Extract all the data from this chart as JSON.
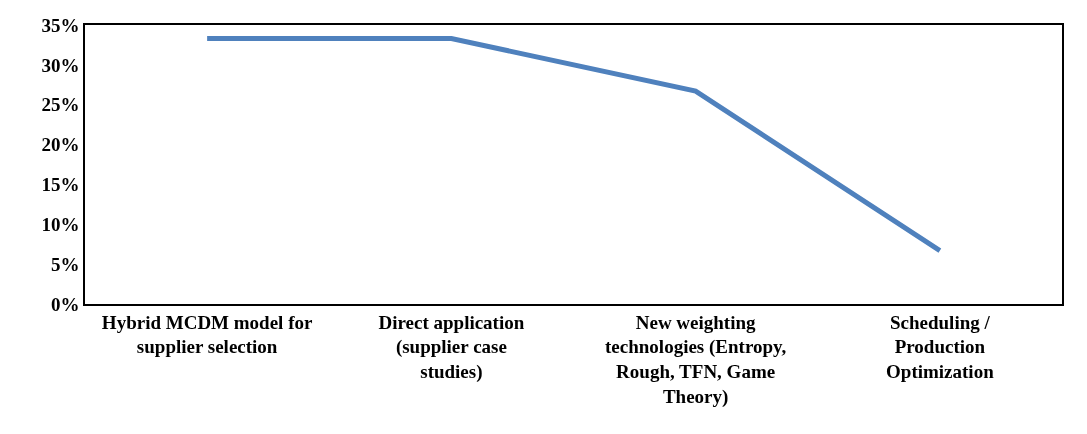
{
  "chart_data": {
    "type": "line",
    "categories": [
      "Hybrid MCDM model for supplier selection",
      "Direct application (supplier case studies)",
      "New weighting technologies (Entropy, Rough, TFN, Game Theory)",
      "Scheduling / Production Optimization"
    ],
    "series": [
      {
        "color": "#4f81bd",
        "values": [
          33.3,
          33.3,
          26.7,
          6.7
        ]
      }
    ],
    "ylim": [
      0,
      35
    ],
    "yticks": [
      {
        "value": 0,
        "label": "0%"
      },
      {
        "value": 5,
        "label": "5%"
      },
      {
        "value": 10,
        "label": "10%"
      },
      {
        "value": 15,
        "label": "15%"
      },
      {
        "value": 20,
        "label": "20%"
      },
      {
        "value": 25,
        "label": "25%"
      },
      {
        "value": 30,
        "label": "30%"
      },
      {
        "value": 35,
        "label": "35%"
      }
    ],
    "marker": "none",
    "line_style": "solid"
  }
}
